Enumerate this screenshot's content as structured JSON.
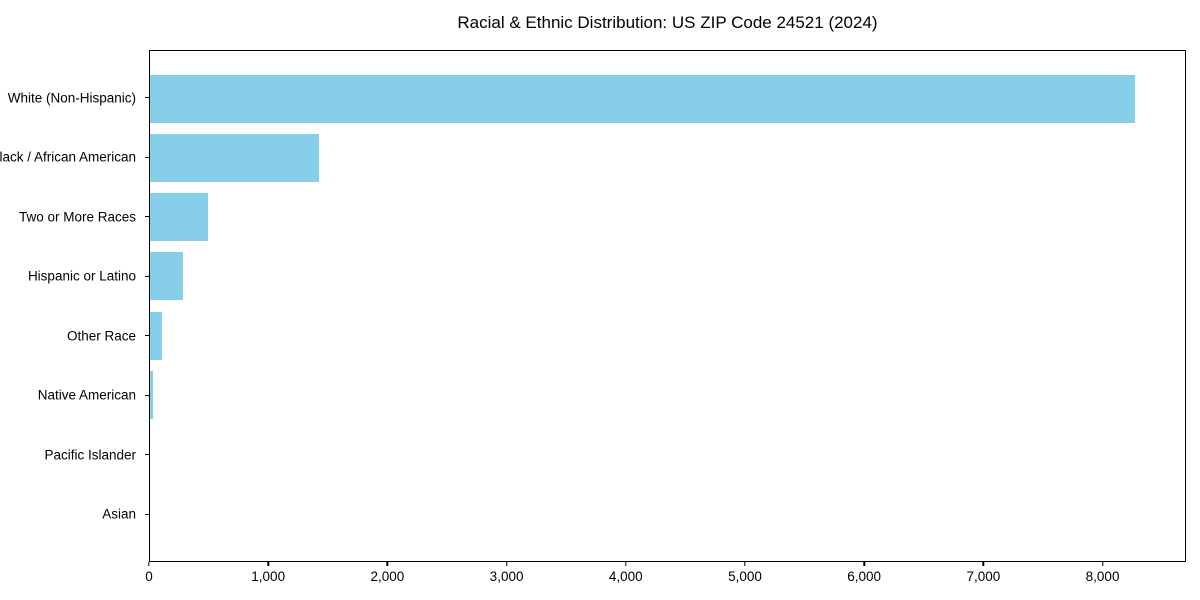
{
  "title": "Racial & Ethnic Distribution: US ZIP Code 24521 (2024)",
  "colors": {
    "bar": "#87CEEB",
    "axis": "#000000",
    "text": "#000000",
    "background": "#FFFFFF"
  },
  "chart_data": {
    "type": "bar",
    "orientation": "horizontal",
    "title": "Racial & Ethnic Distribution: US ZIP Code 24521 (2024)",
    "categories": [
      "White (Non-Hispanic)",
      "Black / African American",
      "Two or More Races",
      "Hispanic or Latino",
      "Other Race",
      "Native American",
      "Pacific Islander",
      "Asian"
    ],
    "values": [
      8280,
      1420,
      490,
      280,
      98,
      25,
      0,
      0
    ],
    "xlabel": "",
    "ylabel": "",
    "xlim": [
      0,
      8700
    ],
    "xticks": [
      0,
      1000,
      2000,
      3000,
      4000,
      5000,
      6000,
      7000,
      8000
    ],
    "xtick_labels": [
      "0",
      "1,000",
      "2,000",
      "3,000",
      "4,000",
      "5,000",
      "6,000",
      "7,000",
      "8,000"
    ],
    "grid": false,
    "legend": null,
    "bar_color": "#87CEEB"
  }
}
